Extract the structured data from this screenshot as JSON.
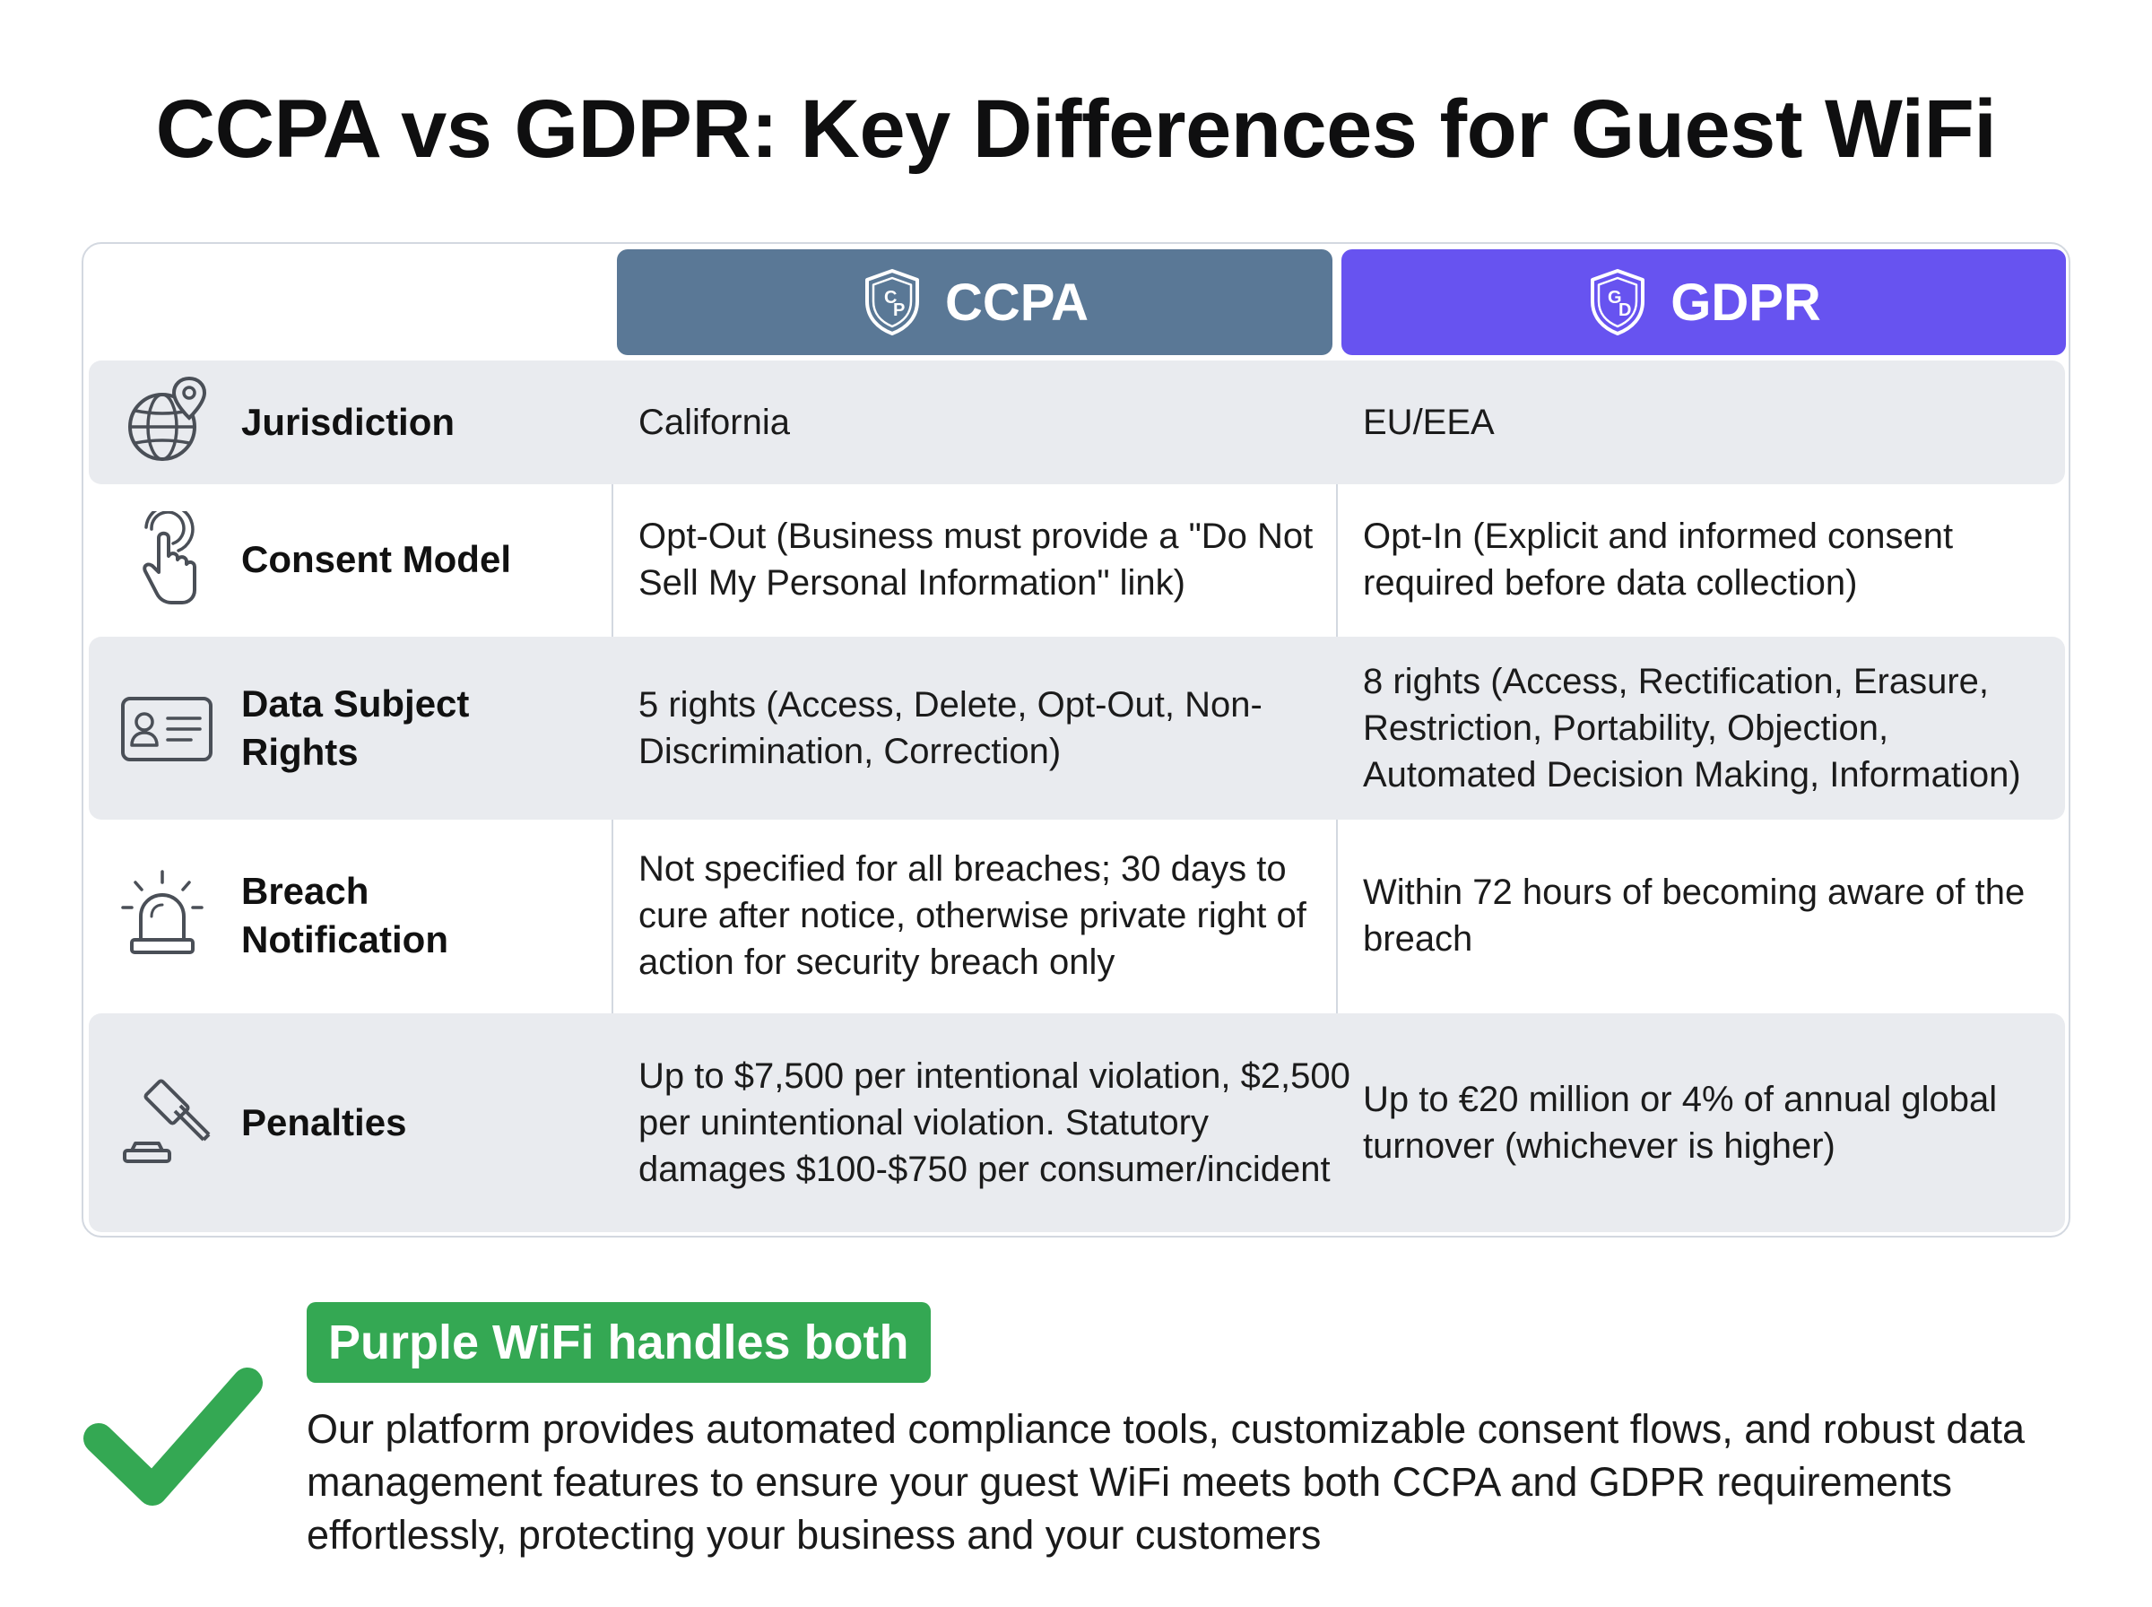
{
  "title": "CCPA vs GDPR: Key Differences for Guest WiFi",
  "columns": {
    "ccpa": {
      "label": "CCPA",
      "shield_letters": "C P",
      "color": "#5a7896"
    },
    "gdpr": {
      "label": "GDPR",
      "shield_letters": "G D",
      "color": "#6753f0"
    }
  },
  "rows": [
    {
      "icon": "globe-pin-icon",
      "label": "Jurisdiction",
      "ccpa": "California",
      "gdpr": "EU/EEA"
    },
    {
      "icon": "tap-hand-icon",
      "label": "Consent Model",
      "ccpa": "Opt-Out (Business must provide a \"Do Not Sell My Personal Information\" link)",
      "gdpr": "Opt-In (Explicit and informed consent required before data collection)"
    },
    {
      "icon": "id-card-icon",
      "label": "Data Subject Rights",
      "ccpa": "5 rights (Access, Delete, Opt-Out, Non-Discrimination, Correction)",
      "gdpr": "8 rights (Access, Rectification, Erasure, Restriction, Portability, Objection, Automated Decision Making, Information)"
    },
    {
      "icon": "alarm-siren-icon",
      "label": "Breach Notification",
      "ccpa": "Not specified for all breaches; 30 days to cure after notice, otherwise private right of action for security breach only",
      "gdpr": "Within 72 hours of becoming aware of the breach"
    },
    {
      "icon": "gavel-icon",
      "label": "Penalties",
      "ccpa": "Up to $7,500 per intentional violation, $2,500 per unintentional violation. Statutory damages $100-$750 per consumer/incident",
      "gdpr": "Up to €20 million or 4% of annual global turnover (whichever is higher)"
    }
  ],
  "footer": {
    "badge": "Purple WiFi handles both",
    "badge_color": "#34a853",
    "icon": "checkmark-icon",
    "text": "Our platform provides automated compliance tools, customizable consent flows, and robust data management features to ensure your guest WiFi meets both CCPA and GDPR requirements effortlessly, protecting your business and your customers"
  }
}
